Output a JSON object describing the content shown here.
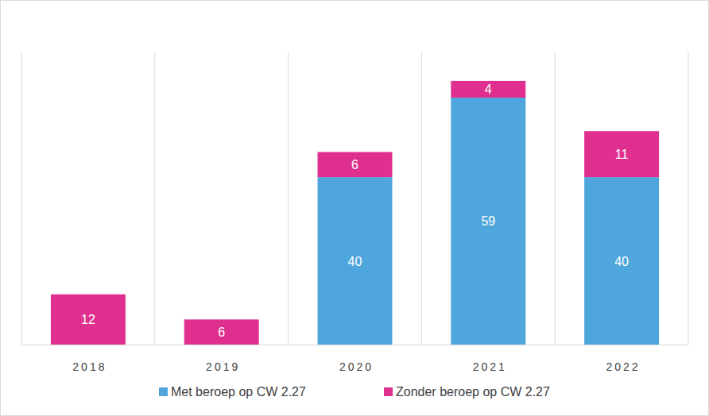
{
  "chart_data": {
    "type": "bar",
    "stacked": true,
    "data_labels": true,
    "tick_labels": "x",
    "categories": [
      "2018",
      "2019",
      "2020",
      "2021",
      "2022"
    ],
    "series": [
      {
        "name": "Met beroep op CW 2.27",
        "color": "#4ea6dc",
        "values": [
          null,
          null,
          40,
          59,
          40
        ]
      },
      {
        "name": "Zonder beroep op CW 2.27",
        "color": "#e0308f",
        "values": [
          12,
          6,
          6,
          4,
          11
        ]
      }
    ],
    "ylim": [
      0,
      70
    ]
  }
}
